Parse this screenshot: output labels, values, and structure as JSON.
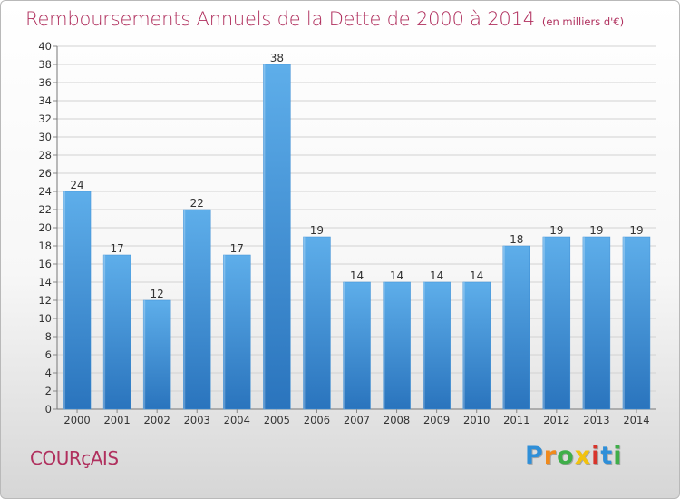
{
  "chart_data": {
    "type": "bar",
    "title": "Remboursements Annuels de la Dette de 2000 à 2014",
    "unit_label": "(en milliers d'€)",
    "categories": [
      "2000",
      "2001",
      "2002",
      "2003",
      "2004",
      "2005",
      "2006",
      "2007",
      "2008",
      "2009",
      "2010",
      "2011",
      "2012",
      "2013",
      "2014"
    ],
    "values": [
      24,
      17,
      12,
      22,
      17,
      38,
      19,
      14,
      14,
      14,
      14,
      18,
      19,
      19,
      19
    ],
    "ylim": [
      0,
      40
    ],
    "yticks": [
      0,
      2,
      4,
      6,
      8,
      10,
      12,
      14,
      16,
      18,
      20,
      22,
      24,
      26,
      28,
      30,
      32,
      34,
      36,
      38,
      40
    ],
    "xlabel": "",
    "ylabel": "",
    "grid": true,
    "data_labels": true,
    "bar_color": "#3d8fd6",
    "bar_color_top": "#5eaeea",
    "bar_color_bottom": "#2a74bd"
  },
  "location": "COURçAIS",
  "logo": {
    "letters": [
      "P",
      "r",
      "o",
      "x",
      "i",
      "t",
      "i"
    ],
    "colors": [
      "#2f8fd8",
      "#f08a1c",
      "#3fae49",
      "#f2c20e",
      "#d8342b",
      "#2f8fd8",
      "#3fae49"
    ]
  }
}
